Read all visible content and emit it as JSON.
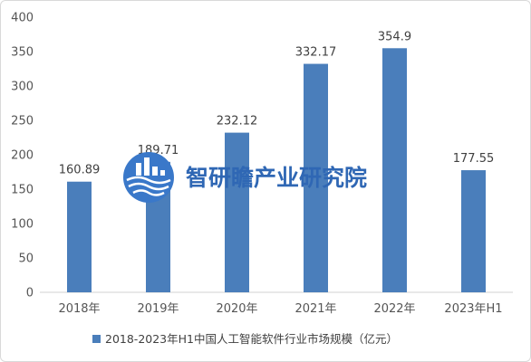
{
  "chart_data": {
    "type": "bar",
    "categories": [
      "2018年",
      "2019年",
      "2020年",
      "2021年",
      "2022年",
      "2023年H1"
    ],
    "series": [
      {
        "name": "2018-2023年H1中国人工智能软件行业市场规模（亿元）",
        "values": [
          160.89,
          189.71,
          232.12,
          332.17,
          354.9,
          177.55
        ],
        "labels": [
          "160.89",
          "189.71",
          "232.12",
          "332.17",
          "354.9",
          "177.55"
        ]
      }
    ],
    "ylim": [
      0,
      400
    ],
    "yticks": [
      0,
      50,
      100,
      150,
      200,
      250,
      300,
      350,
      400
    ],
    "grid": false,
    "legend_position": "bottom",
    "bar_color": "#4a7ebb"
  },
  "watermark": {
    "text": "智研瞻产业研究院",
    "color": "#2f67b4",
    "icon": "building-logo-icon"
  }
}
